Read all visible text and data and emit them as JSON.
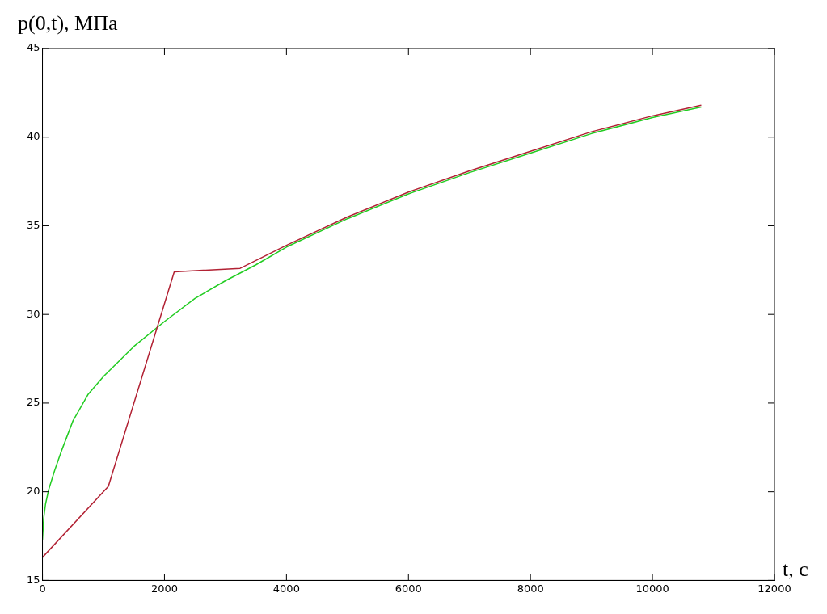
{
  "chart_data": {
    "type": "line",
    "ylabel": "p(0,t), МПа",
    "xlabel": "t, с",
    "xlim": [
      0,
      12000
    ],
    "ylim": [
      15,
      45
    ],
    "xticks": [
      0,
      2000,
      4000,
      6000,
      8000,
      10000,
      12000
    ],
    "yticks": [
      15,
      20,
      25,
      30,
      35,
      40,
      45
    ],
    "grid": false,
    "legend": false,
    "marker": "none",
    "series": [
      {
        "color": "#b22234",
        "x": [
          0,
          1080,
          2160,
          3240,
          4000,
          5000,
          6000,
          7000,
          8000,
          9000,
          10000,
          10800
        ],
        "values": [
          16.3,
          20.3,
          32.4,
          32.6,
          33.9,
          35.5,
          36.9,
          38.1,
          39.2,
          40.3,
          41.2,
          41.8
        ]
      },
      {
        "color": "#22cc22",
        "x": [
          0,
          20,
          50,
          100,
          200,
          300,
          500,
          750,
          1000,
          1500,
          2000,
          2500,
          3000,
          3500,
          4000,
          5000,
          6000,
          7000,
          8000,
          9000,
          10000,
          10800
        ],
        "values": [
          17.3,
          18.5,
          19.3,
          20.1,
          21.2,
          22.2,
          24.0,
          25.5,
          26.5,
          28.2,
          29.6,
          30.9,
          31.9,
          32.8,
          33.8,
          35.4,
          36.8,
          38.0,
          39.1,
          40.2,
          41.1,
          41.7
        ]
      }
    ]
  }
}
